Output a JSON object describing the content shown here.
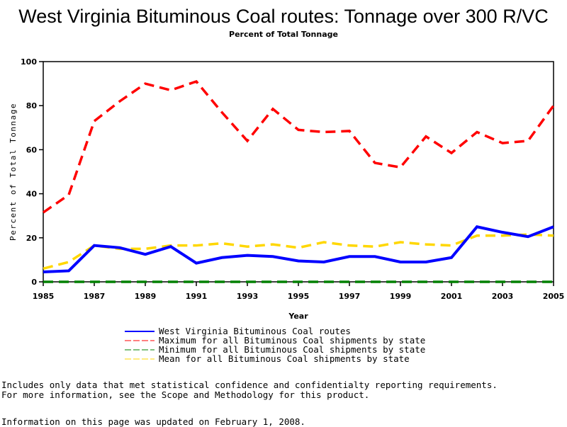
{
  "chart_data": {
    "type": "line",
    "title": "West Virginia Bituminous Coal routes: Tonnage over 300 R/VC",
    "subtitle": "Percent of Total Tonnage",
    "xlabel": "Year",
    "ylabel": "Percent of Total Tonnage",
    "xlim": [
      1985,
      2005
    ],
    "ylim": [
      0,
      100
    ],
    "x_ticks": [
      "1985",
      "1987",
      "1989",
      "1991",
      "1993",
      "1995",
      "1997",
      "1999",
      "2001",
      "2003",
      "2005"
    ],
    "y_ticks": [
      "0",
      "20",
      "40",
      "60",
      "80",
      "100"
    ],
    "grid": false,
    "legend_position": "bottom",
    "x": [
      1985,
      1986,
      1987,
      1988,
      1989,
      1990,
      1991,
      1992,
      1993,
      1994,
      1995,
      1996,
      1997,
      1998,
      1999,
      2000,
      2001,
      2002,
      2003,
      2004,
      2005
    ],
    "series": [
      {
        "name": "West Virginia Bituminous Coal routes",
        "color": "#0000ff",
        "style": "solid",
        "values": [
          4.5,
          5,
          16.5,
          15.5,
          12.5,
          16,
          8.5,
          11,
          12,
          11.5,
          9.5,
          9,
          11.5,
          11.5,
          9,
          9,
          11,
          25,
          22.5,
          20.5,
          25
        ]
      },
      {
        "name": "Maximum for all Bituminous Coal shipments by state",
        "color": "#ff0000",
        "style": "dashed",
        "values": [
          31.5,
          39.5,
          73,
          82,
          90,
          87,
          91,
          77,
          64,
          78.5,
          69,
          68,
          68.5,
          54,
          52,
          66,
          58.5,
          68,
          63,
          64,
          80
        ]
      },
      {
        "name": "Minimum for all Bituminous Coal shipments by state",
        "color": "#008000",
        "style": "dashed",
        "values": [
          0,
          0,
          0,
          0,
          0,
          0,
          0,
          0,
          0,
          0,
          0,
          0,
          0,
          0,
          0,
          0,
          0,
          0,
          0,
          0,
          0
        ]
      },
      {
        "name": "Mean for all Bituminous Coal shipments by state",
        "color": "#ffd700",
        "style": "dashed",
        "values": [
          6,
          9,
          16.5,
          15,
          15,
          16.5,
          16.5,
          17.5,
          16,
          17,
          15.5,
          18,
          16.5,
          16,
          18,
          17,
          16.5,
          21,
          21,
          21.5,
          21
        ]
      }
    ]
  },
  "notes": [
    "Includes only data that met statistical confidence and confidentialty reporting requirements.",
    "For more information, see the Scope and Methodology for this product."
  ],
  "updated": "Information on this page was updated on February 1, 2008."
}
